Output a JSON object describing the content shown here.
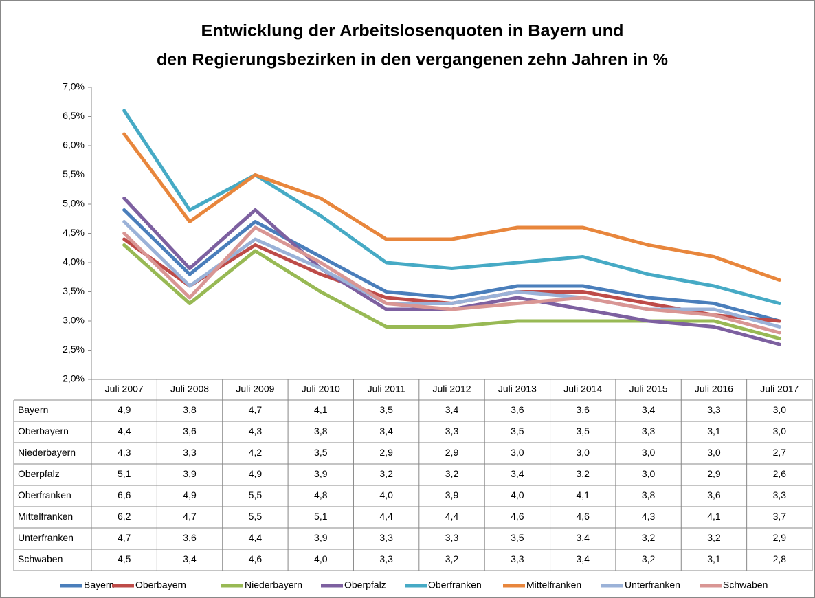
{
  "chart_data": {
    "type": "line",
    "title": [
      "Entwicklung der Arbeitslosenquoten in Bayern und",
      "den Regierungsbezirken in den vergangenen zehn Jahren in %"
    ],
    "categories": [
      "Juli 2007",
      "Juli 2008",
      "Juli 2009",
      "Juli 2010",
      "Juli 2011",
      "Juli 2012",
      "Juli 2013",
      "Juli 2014",
      "Juli 2015",
      "Juli 2016",
      "Juli 2017"
    ],
    "ylim": [
      2,
      7
    ],
    "yticks": [
      {
        "value": 2,
        "label": "2,0%"
      },
      {
        "value": 2.5,
        "label": "2,5%"
      },
      {
        "value": 3,
        "label": "3,0%"
      },
      {
        "value": 3.5,
        "label": "3,5%"
      },
      {
        "value": 4,
        "label": "4,0%"
      },
      {
        "value": 4.5,
        "label": "4,5%"
      },
      {
        "value": 5,
        "label": "5,0%"
      },
      {
        "value": 5.5,
        "label": "5,5%"
      },
      {
        "value": 6,
        "label": "6,0%"
      },
      {
        "value": 6.5,
        "label": "6,5%"
      },
      {
        "value": 7,
        "label": "7,0%"
      }
    ],
    "grid": false,
    "series": [
      {
        "name": "Bayern",
        "color": "#4a7ebb",
        "values": [
          4.9,
          3.8,
          4.7,
          4.1,
          3.5,
          3.4,
          3.6,
          3.6,
          3.4,
          3.3,
          3.0
        ],
        "value_labels": [
          "4,9",
          "3,8",
          "4,7",
          "4,1",
          "3,5",
          "3,4",
          "3,6",
          "3,6",
          "3,4",
          "3,3",
          "3,0"
        ]
      },
      {
        "name": "Oberbayern",
        "color": "#be4b48",
        "values": [
          4.4,
          3.6,
          4.3,
          3.8,
          3.4,
          3.3,
          3.5,
          3.5,
          3.3,
          3.1,
          3.0
        ],
        "value_labels": [
          "4,4",
          "3,6",
          "4,3",
          "3,8",
          "3,4",
          "3,3",
          "3,5",
          "3,5",
          "3,3",
          "3,1",
          "3,0"
        ]
      },
      {
        "name": "Niederbayern",
        "color": "#98b954",
        "values": [
          4.3,
          3.3,
          4.2,
          3.5,
          2.9,
          2.9,
          3.0,
          3.0,
          3.0,
          3.0,
          2.7
        ],
        "value_labels": [
          "4,3",
          "3,3",
          "4,2",
          "3,5",
          "2,9",
          "2,9",
          "3,0",
          "3,0",
          "3,0",
          "3,0",
          "2,7"
        ]
      },
      {
        "name": "Oberpfalz",
        "color": "#7d60a0",
        "values": [
          5.1,
          3.9,
          4.9,
          3.9,
          3.2,
          3.2,
          3.4,
          3.2,
          3.0,
          2.9,
          2.6
        ],
        "value_labels": [
          "5,1",
          "3,9",
          "4,9",
          "3,9",
          "3,2",
          "3,2",
          "3,4",
          "3,2",
          "3,0",
          "2,9",
          "2,6"
        ]
      },
      {
        "name": "Oberfranken",
        "color": "#46aac5",
        "values": [
          6.6,
          4.9,
          5.5,
          4.8,
          4.0,
          3.9,
          4.0,
          4.1,
          3.8,
          3.6,
          3.3
        ],
        "value_labels": [
          "6,6",
          "4,9",
          "5,5",
          "4,8",
          "4,0",
          "3,9",
          "4,0",
          "4,1",
          "3,8",
          "3,6",
          "3,3"
        ]
      },
      {
        "name": "Mittelfranken",
        "color": "#e8863c",
        "values": [
          6.2,
          4.7,
          5.5,
          5.1,
          4.4,
          4.4,
          4.6,
          4.6,
          4.3,
          4.1,
          3.7
        ],
        "value_labels": [
          "6,2",
          "4,7",
          "5,5",
          "5,1",
          "4,4",
          "4,4",
          "4,6",
          "4,6",
          "4,3",
          "4,1",
          "3,7"
        ]
      },
      {
        "name": "Unterfranken",
        "color": "#9bb2d8",
        "values": [
          4.7,
          3.6,
          4.4,
          3.9,
          3.3,
          3.3,
          3.5,
          3.4,
          3.2,
          3.2,
          2.9
        ],
        "value_labels": [
          "4,7",
          "3,6",
          "4,4",
          "3,9",
          "3,3",
          "3,3",
          "3,5",
          "3,4",
          "3,2",
          "3,2",
          "2,9"
        ]
      },
      {
        "name": "Schwaben",
        "color": "#d99694",
        "values": [
          4.5,
          3.4,
          4.6,
          4.0,
          3.3,
          3.2,
          3.3,
          3.4,
          3.2,
          3.1,
          2.8
        ],
        "value_labels": [
          "4,5",
          "3,4",
          "4,6",
          "4,0",
          "3,3",
          "3,2",
          "3,3",
          "3,4",
          "3,2",
          "3,1",
          "2,8"
        ]
      }
    ]
  }
}
